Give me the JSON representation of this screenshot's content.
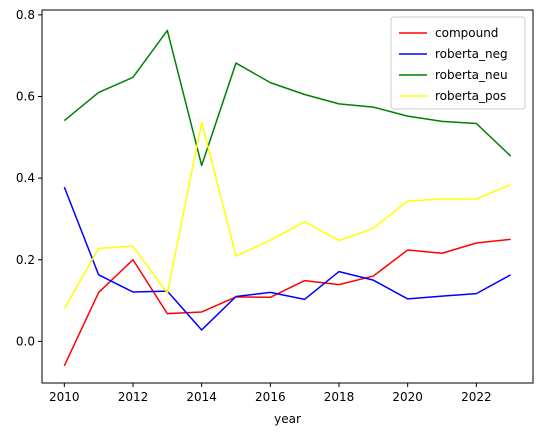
{
  "chart_data": {
    "type": "line",
    "xlabel": "year",
    "ylabel": "",
    "xlim": [
      2009.35,
      2023.65
    ],
    "ylim": [
      -0.102,
      0.812
    ],
    "xticks": [
      2010,
      2012,
      2014,
      2016,
      2018,
      2020,
      2022
    ],
    "yticks": [
      0.0,
      0.2,
      0.4,
      0.6,
      0.8
    ],
    "ytick_labels": [
      "0.0",
      "0.2",
      "0.4",
      "0.6",
      "0.8"
    ],
    "grid": false,
    "legend_placement": "top-right",
    "x": [
      2010,
      2011,
      2012,
      2013,
      2014,
      2015,
      2016,
      2017,
      2018,
      2019,
      2020,
      2021,
      2022,
      2023
    ],
    "series": [
      {
        "name": "compound",
        "color": "#ff0000",
        "values": [
          -0.06,
          0.12,
          0.2,
          0.068,
          0.072,
          0.109,
          0.108,
          0.149,
          0.139,
          0.16,
          0.224,
          0.216,
          0.241,
          0.25
        ]
      },
      {
        "name": "roberta_neg",
        "color": "#0000ff",
        "values": [
          0.378,
          0.163,
          0.121,
          0.123,
          0.028,
          0.11,
          0.12,
          0.103,
          0.171,
          0.15,
          0.104,
          0.111,
          0.117,
          0.163
        ]
      },
      {
        "name": "roberta_neu",
        "color": "#008000",
        "values": [
          0.541,
          0.61,
          0.647,
          0.762,
          0.431,
          0.682,
          0.634,
          0.605,
          0.582,
          0.574,
          0.552,
          0.539,
          0.534,
          0.454
        ]
      },
      {
        "name": "roberta_pos",
        "color": "#ffff00",
        "values": [
          0.08,
          0.228,
          0.233,
          0.118,
          0.537,
          0.209,
          0.248,
          0.293,
          0.247,
          0.277,
          0.344,
          0.349,
          0.349,
          0.384
        ]
      }
    ]
  }
}
